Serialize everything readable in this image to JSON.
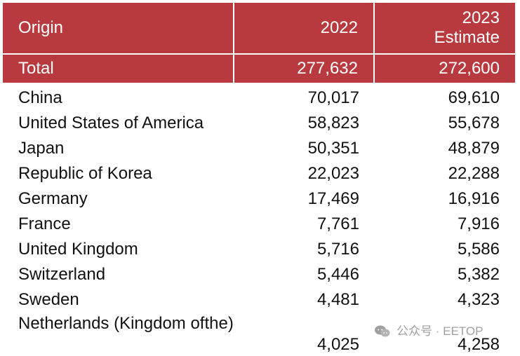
{
  "table": {
    "headers": {
      "origin": "Origin",
      "year2022": "2022",
      "year2023_line1": "2023",
      "year2023_line2": "Estimate"
    },
    "total": {
      "label": "Total",
      "value2022": "277,632",
      "value2023": "272,600"
    },
    "rows": [
      {
        "origin": "China",
        "value2022": "70,017",
        "value2023": "69,610"
      },
      {
        "origin": "United States of America",
        "value2022": "58,823",
        "value2023": "55,678"
      },
      {
        "origin": "Japan",
        "value2022": "50,351",
        "value2023": "48,879"
      },
      {
        "origin": "Republic of Korea",
        "value2022": "22,023",
        "value2023": "22,288"
      },
      {
        "origin": "Germany",
        "value2022": "17,469",
        "value2023": "16,916"
      },
      {
        "origin": "France",
        "value2022": "7,761",
        "value2023": "7,916"
      },
      {
        "origin": "United Kingdom",
        "value2022": "5,716",
        "value2023": "5,586"
      },
      {
        "origin": "Switzerland",
        "value2022": "5,446",
        "value2023": "5,382"
      },
      {
        "origin": "Sweden",
        "value2022": "4,481",
        "value2023": "4,323"
      },
      {
        "origin_line1": "Netherlands (Kingdom of",
        "origin_line2": "the)",
        "value2022": "4,025",
        "value2023": "4,258"
      }
    ]
  },
  "watermark": {
    "text": "公众号 · EETOP",
    "icon": "wechat-icon",
    "color": "#9a9a9a"
  },
  "colors": {
    "header_background": "#b83a3f",
    "header_text": "#ffffff",
    "body_text": "#111111"
  }
}
